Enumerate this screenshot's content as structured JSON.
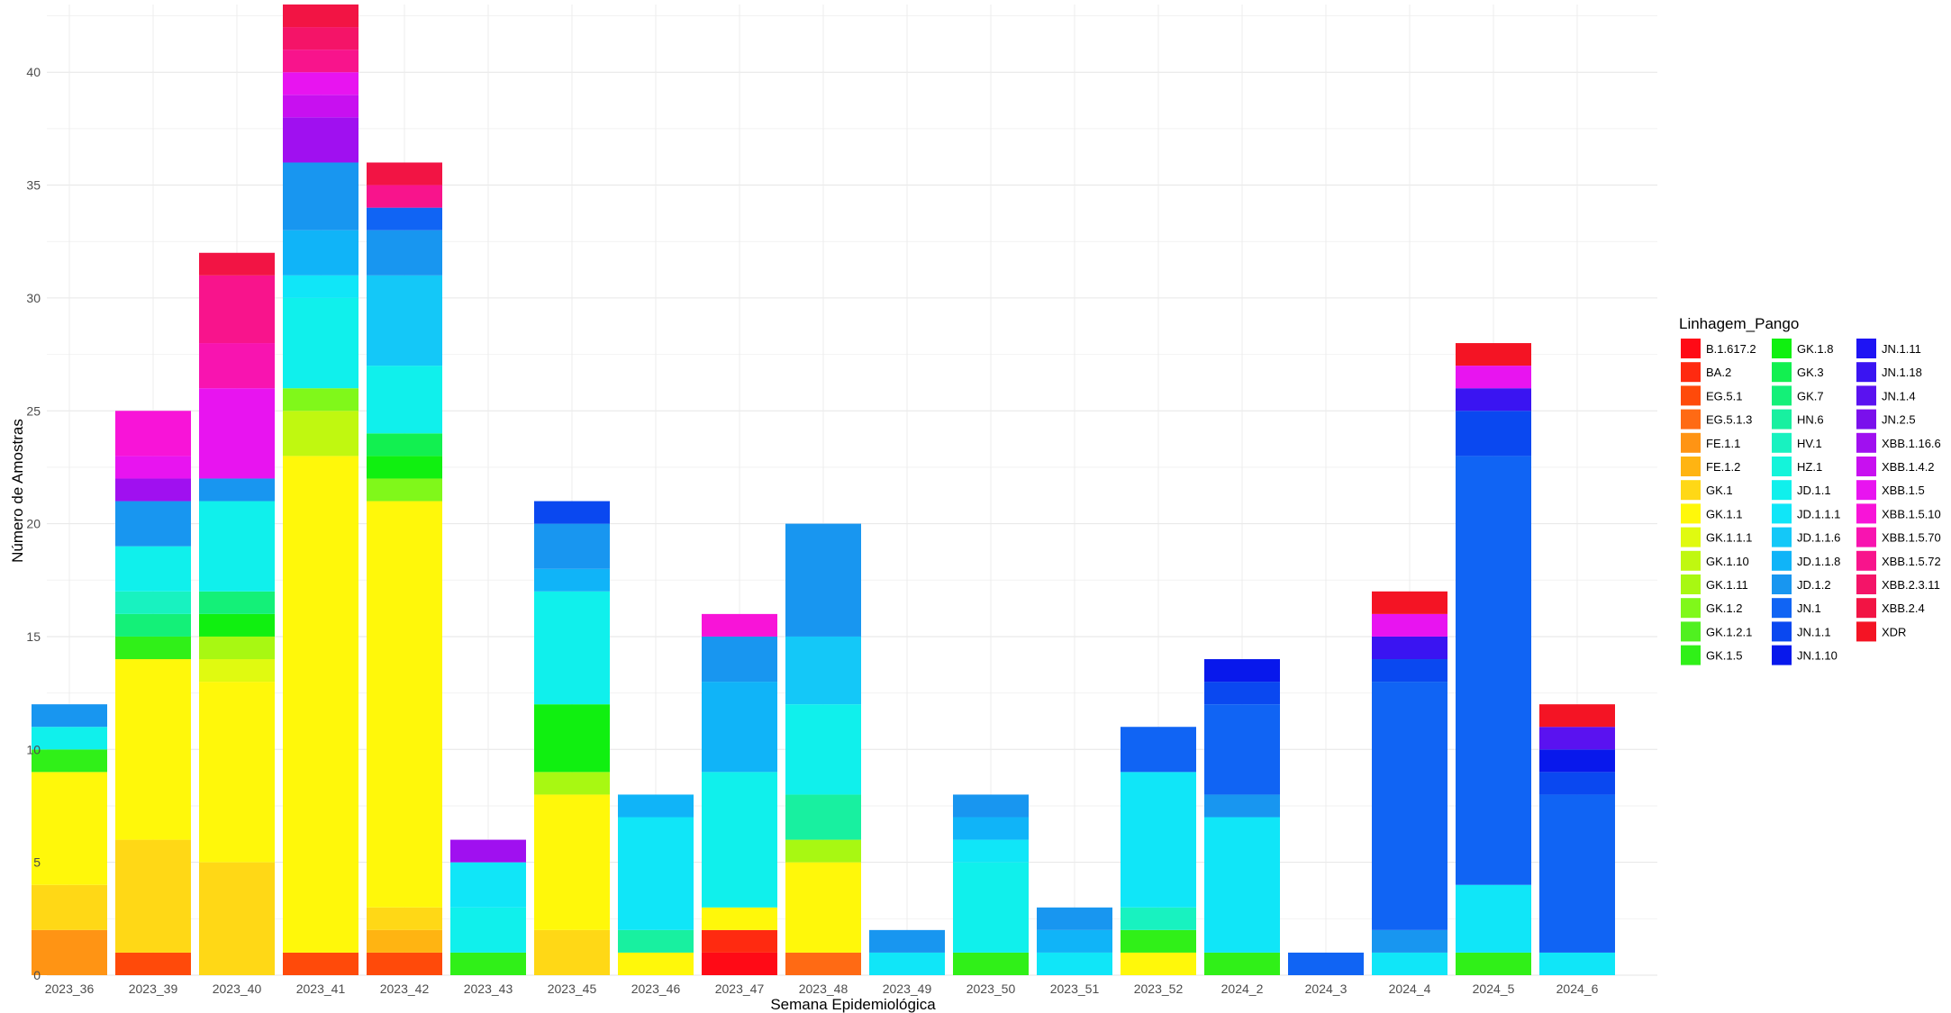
{
  "chart_data": {
    "type": "bar",
    "stacked": true,
    "title": "",
    "xlabel": "Semana Epidemiológica",
    "ylabel": "Número de Amostras",
    "ylim": [
      0,
      43
    ],
    "yticks": [
      0,
      5,
      10,
      15,
      20,
      25,
      30,
      35,
      40
    ],
    "grid": true,
    "legend": {
      "title": "Linhagem_Pango",
      "position": "right",
      "columns": 3
    },
    "categories": [
      "2023_36",
      "2023_39",
      "2023_40",
      "2023_41",
      "2023_42",
      "2023_43",
      "2023_45",
      "2023_46",
      "2023_47",
      "2023_48",
      "2023_49",
      "2023_50",
      "2023_51",
      "2023_52",
      "2024_2",
      "2024_3",
      "2024_4",
      "2024_5",
      "2024_6"
    ],
    "series": [
      {
        "name": "B.1.617.2",
        "color": "#FF0A16",
        "values": [
          0,
          0,
          0,
          0,
          0,
          0,
          0,
          0,
          1,
          0,
          0,
          0,
          0,
          0,
          0,
          0,
          0,
          0,
          0
        ]
      },
      {
        "name": "BA.2",
        "color": "#FF2A10",
        "values": [
          0,
          0,
          0,
          0,
          0,
          0,
          0,
          0,
          1,
          0,
          0,
          0,
          0,
          0,
          0,
          0,
          0,
          0,
          0
        ]
      },
      {
        "name": "EG.5.1",
        "color": "#FF4A0A",
        "values": [
          0,
          1,
          0,
          1,
          1,
          0,
          0,
          0,
          0,
          0,
          0,
          0,
          0,
          0,
          0,
          0,
          0,
          0,
          0
        ]
      },
      {
        "name": "EG.5.1.3",
        "color": "#FF6A14",
        "values": [
          0,
          0,
          0,
          0,
          0,
          0,
          0,
          0,
          0,
          1,
          0,
          0,
          0,
          0,
          0,
          0,
          0,
          0,
          0
        ]
      },
      {
        "name": "FE.1.1",
        "color": "#FF9414",
        "values": [
          2,
          0,
          0,
          0,
          0,
          0,
          0,
          0,
          0,
          0,
          0,
          0,
          0,
          0,
          0,
          0,
          0,
          0,
          0
        ]
      },
      {
        "name": "FE.1.2",
        "color": "#FFB412",
        "values": [
          0,
          0,
          0,
          0,
          1,
          0,
          0,
          0,
          0,
          0,
          0,
          0,
          0,
          0,
          0,
          0,
          0,
          0,
          0
        ]
      },
      {
        "name": "GK.1",
        "color": "#FFD816",
        "values": [
          2,
          5,
          5,
          0,
          1,
          0,
          2,
          0,
          0,
          0,
          0,
          0,
          0,
          0,
          0,
          0,
          0,
          0,
          0
        ]
      },
      {
        "name": "GK.1.1",
        "color": "#FFF80A",
        "values": [
          5,
          8,
          8,
          22,
          18,
          0,
          6,
          1,
          1,
          4,
          0,
          0,
          0,
          1,
          0,
          0,
          0,
          0,
          0
        ]
      },
      {
        "name": "GK.1.1.1",
        "color": "#E0FA10",
        "values": [
          0,
          0,
          1,
          0,
          0,
          0,
          0,
          0,
          0,
          0,
          0,
          0,
          0,
          0,
          0,
          0,
          0,
          0,
          0
        ]
      },
      {
        "name": "GK.1.10",
        "color": "#C0F810",
        "values": [
          0,
          0,
          0,
          2,
          0,
          0,
          0,
          0,
          0,
          0,
          0,
          0,
          0,
          0,
          0,
          0,
          0,
          0,
          0
        ]
      },
      {
        "name": "GK.1.11",
        "color": "#A8F812",
        "values": [
          0,
          0,
          1,
          0,
          0,
          0,
          1,
          0,
          0,
          1,
          0,
          0,
          0,
          0,
          0,
          0,
          0,
          0,
          0
        ]
      },
      {
        "name": "GK.1.2",
        "color": "#80F81A",
        "values": [
          0,
          0,
          0,
          1,
          1,
          0,
          0,
          0,
          0,
          0,
          0,
          0,
          0,
          0,
          0,
          0,
          0,
          0,
          0
        ]
      },
      {
        "name": "GK.1.2.1",
        "color": "#50F020",
        "values": [
          0,
          0,
          0,
          0,
          0,
          0,
          0,
          0,
          0,
          0,
          0,
          0,
          0,
          0,
          0,
          0,
          0,
          0,
          0
        ]
      },
      {
        "name": "GK.1.5",
        "color": "#30F018",
        "values": [
          1,
          1,
          0,
          0,
          0,
          1,
          0,
          0,
          0,
          0,
          0,
          1,
          0,
          1,
          1,
          0,
          0,
          1,
          0
        ]
      },
      {
        "name": "GK.1.8",
        "color": "#10F010",
        "values": [
          0,
          0,
          1,
          0,
          1,
          0,
          3,
          0,
          0,
          0,
          0,
          0,
          0,
          0,
          0,
          0,
          0,
          0,
          0
        ]
      },
      {
        "name": "GK.3",
        "color": "#12F050",
        "values": [
          0,
          0,
          0,
          0,
          1,
          0,
          0,
          0,
          0,
          0,
          0,
          0,
          0,
          0,
          0,
          0,
          0,
          0,
          0
        ]
      },
      {
        "name": "GK.7",
        "color": "#14F078",
        "values": [
          0,
          1,
          1,
          0,
          0,
          0,
          0,
          0,
          0,
          0,
          0,
          0,
          0,
          0,
          0,
          0,
          0,
          0,
          0
        ]
      },
      {
        "name": "HN.6",
        "color": "#18F0A0",
        "values": [
          0,
          0,
          0,
          0,
          0,
          0,
          0,
          1,
          0,
          2,
          0,
          0,
          0,
          0,
          0,
          0,
          0,
          0,
          0
        ]
      },
      {
        "name": "HV.1",
        "color": "#18F2C0",
        "values": [
          0,
          1,
          0,
          0,
          0,
          0,
          0,
          0,
          0,
          0,
          0,
          0,
          0,
          1,
          0,
          0,
          0,
          0,
          0
        ]
      },
      {
        "name": "HZ.1",
        "color": "#14F4DA",
        "values": [
          0,
          0,
          0,
          0,
          0,
          0,
          0,
          0,
          0,
          0,
          0,
          0,
          0,
          0,
          0,
          0,
          0,
          0,
          0
        ]
      },
      {
        "name": "JD.1.1",
        "color": "#10F0EC",
        "values": [
          1,
          2,
          4,
          4,
          3,
          2,
          5,
          0,
          6,
          4,
          0,
          4,
          0,
          0,
          0,
          0,
          0,
          0,
          0
        ]
      },
      {
        "name": "JD.1.1.1",
        "color": "#10E6F8",
        "values": [
          0,
          0,
          0,
          1,
          0,
          2,
          0,
          5,
          0,
          0,
          1,
          1,
          1,
          6,
          6,
          0,
          1,
          3,
          1
        ]
      },
      {
        "name": "JD.1.1.6",
        "color": "#14C8F8",
        "values": [
          0,
          0,
          0,
          0,
          4,
          0,
          0,
          0,
          0,
          3,
          0,
          0,
          0,
          0,
          0,
          0,
          0,
          0,
          0
        ]
      },
      {
        "name": "JD.1.1.8",
        "color": "#10B4F8",
        "values": [
          0,
          0,
          0,
          2,
          0,
          0,
          1,
          1,
          4,
          0,
          0,
          1,
          1,
          0,
          0,
          0,
          0,
          0,
          0
        ]
      },
      {
        "name": "JD.1.2",
        "color": "#1896F0",
        "values": [
          1,
          2,
          1,
          3,
          2,
          0,
          2,
          0,
          2,
          5,
          1,
          1,
          1,
          0,
          1,
          0,
          1,
          0,
          0
        ]
      },
      {
        "name": "JN.1",
        "color": "#1064F4",
        "values": [
          0,
          0,
          0,
          0,
          1,
          0,
          0,
          0,
          0,
          0,
          0,
          0,
          0,
          2,
          4,
          1,
          11,
          19,
          7
        ]
      },
      {
        "name": "JN.1.1",
        "color": "#0A48F0",
        "values": [
          0,
          0,
          0,
          0,
          0,
          0,
          1,
          0,
          0,
          0,
          0,
          0,
          0,
          0,
          1,
          0,
          1,
          2,
          1
        ]
      },
      {
        "name": "JN.1.10",
        "color": "#0818EC",
        "values": [
          0,
          0,
          0,
          0,
          0,
          0,
          0,
          0,
          0,
          0,
          0,
          0,
          0,
          0,
          1,
          0,
          0,
          0,
          1
        ]
      },
      {
        "name": "JN.1.11",
        "color": "#1E14F4",
        "values": [
          0,
          0,
          0,
          0,
          0,
          0,
          0,
          0,
          0,
          0,
          0,
          0,
          0,
          0,
          0,
          0,
          0,
          0,
          0
        ]
      },
      {
        "name": "JN.1.18",
        "color": "#3A14F2",
        "values": [
          0,
          0,
          0,
          0,
          0,
          0,
          0,
          0,
          0,
          0,
          0,
          0,
          0,
          0,
          0,
          0,
          1,
          1,
          0
        ]
      },
      {
        "name": "JN.1.4",
        "color": "#5A12F0",
        "values": [
          0,
          0,
          0,
          0,
          0,
          0,
          0,
          0,
          0,
          0,
          0,
          0,
          0,
          0,
          0,
          0,
          0,
          0,
          1
        ]
      },
      {
        "name": "JN.2.5",
        "color": "#7A10EC",
        "values": [
          0,
          0,
          0,
          0,
          0,
          0,
          0,
          0,
          0,
          0,
          0,
          0,
          0,
          0,
          0,
          0,
          0,
          0,
          0
        ]
      },
      {
        "name": "XBB.1.16.6",
        "color": "#A010F0",
        "values": [
          0,
          1,
          0,
          2,
          0,
          1,
          0,
          0,
          0,
          0,
          0,
          0,
          0,
          0,
          0,
          0,
          0,
          0,
          0
        ]
      },
      {
        "name": "XBB.1.4.2",
        "color": "#C810F0",
        "values": [
          0,
          0,
          0,
          1,
          0,
          0,
          0,
          0,
          0,
          0,
          0,
          0,
          0,
          0,
          0,
          0,
          0,
          0,
          0
        ]
      },
      {
        "name": "XBB.1.5",
        "color": "#E814F0",
        "values": [
          0,
          1,
          4,
          1,
          0,
          0,
          0,
          0,
          0,
          0,
          0,
          0,
          0,
          0,
          0,
          0,
          1,
          1,
          0
        ]
      },
      {
        "name": "XBB.1.5.10",
        "color": "#F814D8",
        "values": [
          0,
          2,
          0,
          0,
          0,
          0,
          0,
          0,
          1,
          0,
          0,
          0,
          0,
          0,
          0,
          0,
          0,
          0,
          0
        ]
      },
      {
        "name": "XBB.1.5.70",
        "color": "#F814B0",
        "values": [
          0,
          0,
          2,
          0,
          0,
          0,
          0,
          0,
          0,
          0,
          0,
          0,
          0,
          0,
          0,
          0,
          0,
          0,
          0
        ]
      },
      {
        "name": "XBB.1.5.72",
        "color": "#F8148C",
        "values": [
          0,
          0,
          3,
          1,
          1,
          0,
          0,
          0,
          0,
          0,
          0,
          0,
          0,
          0,
          0,
          0,
          0,
          0,
          0
        ]
      },
      {
        "name": "XBB.2.3.11",
        "color": "#F41468",
        "values": [
          0,
          0,
          0,
          1,
          0,
          0,
          0,
          0,
          0,
          0,
          0,
          0,
          0,
          0,
          0,
          0,
          0,
          0,
          0
        ]
      },
      {
        "name": "XBB.2.4",
        "color": "#F21444",
        "values": [
          0,
          0,
          1,
          1,
          1,
          0,
          0,
          0,
          0,
          0,
          0,
          0,
          0,
          0,
          0,
          0,
          0,
          0,
          0
        ]
      },
      {
        "name": "XDR",
        "color": "#F41424",
        "values": [
          0,
          0,
          0,
          0,
          0,
          0,
          0,
          0,
          0,
          0,
          0,
          0,
          0,
          0,
          0,
          0,
          1,
          1,
          1
        ]
      }
    ]
  }
}
